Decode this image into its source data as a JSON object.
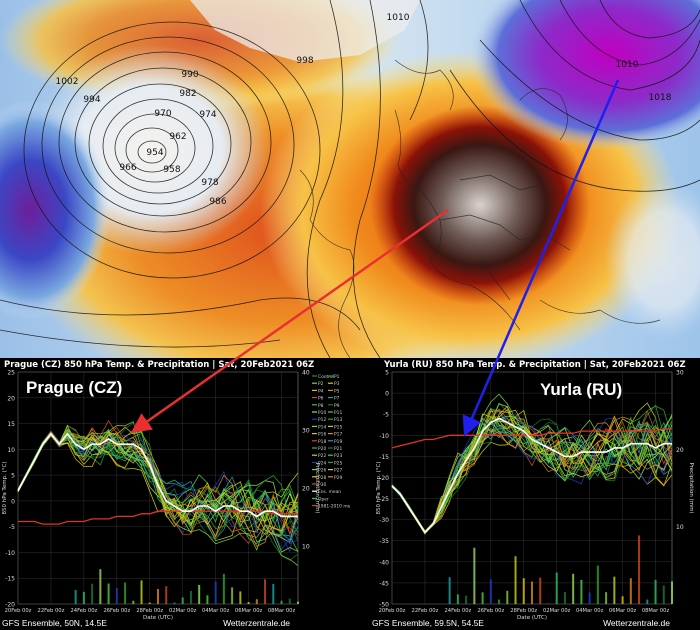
{
  "map": {
    "isobar_labels": [
      "990",
      "982",
      "974",
      "970",
      "962",
      "954",
      "958",
      "966",
      "978",
      "986",
      "994",
      "1002",
      "998",
      "1010",
      "1010",
      "1018"
    ]
  },
  "colors": {
    "control": "#2d8f2d",
    "members": [
      "#1e3cc8",
      "#2aa82a",
      "#7fd13b",
      "#c7d61a",
      "#e8c300",
      "#e08a1a",
      "#d44a1a",
      "#19a6a6",
      "#30c060",
      "#1a7a3a",
      "#9adf5a",
      "#4bd04b"
    ],
    "mean": "#ffffff",
    "climate": "#e0332a",
    "arrow_prague": "#e83030",
    "arrow_yurla": "#2020ee"
  },
  "panels": [
    {
      "key": "prague",
      "title": "Prague  (CZ)  850 hPa Temp. & Precipitation | Sat, 20Feb2021 06Z",
      "name": "Prague (CZ)",
      "footer_left": "GFS Ensemble, 50N, 14.5E",
      "footer_right": "Wetterzentrale.de",
      "legend": [
        "Control",
        "P1",
        "P2",
        "P3",
        "P4",
        "P5",
        "P6",
        "P7",
        "P8",
        "P9",
        "P10",
        "P11",
        "P12",
        "P13",
        "P14",
        "P15",
        "P16",
        "P17",
        "P18",
        "P19",
        "P20",
        "P21",
        "P22",
        "P23",
        "P24",
        "P25",
        "P26",
        "P27",
        "P28",
        "P29",
        "P30",
        "Ens. mean",
        "Oper",
        "1981-2010 mean"
      ]
    },
    {
      "key": "yurla",
      "title": "Yurla  (RU)  850 hPa Temp. & Precipitation | Sat, 20Feb2021 06Z",
      "name": "Yurla (RU)",
      "footer_left": "GFS Ensemble, 59.5N, 54.5E",
      "footer_right": "Wetterzentrale.de",
      "legend": []
    }
  ],
  "chart_data": [
    {
      "type": "line",
      "title": "Prague  (CZ)  850 hPa Temp. & Precipitation | Sat, 20Feb2021 06Z",
      "xlabel": "Date (UTC)",
      "ylabel": "850 hPa Temp. (°C)",
      "y2label": "Precipitation (mm)",
      "x_ticks": [
        "20Feb 00z",
        "22Feb 00z",
        "24Feb 00z",
        "26Feb 00z",
        "28Feb 00z",
        "02Mar 00z",
        "04Mar 00z",
        "06Mar 00z",
        "08Mar 00z"
      ],
      "ylim": [
        -20,
        25
      ],
      "y_ticks": [
        25,
        20,
        15,
        10,
        5,
        0,
        -5,
        -10,
        -15,
        -20
      ],
      "y2lim": [
        0,
        40
      ],
      "y2_ticks": [
        40,
        30,
        20,
        10
      ],
      "x_days": [
        0,
        0.5,
        1,
        1.5,
        2,
        2.5,
        3,
        3.5,
        4,
        4.5,
        5,
        5.5,
        6,
        6.5,
        7,
        7.5,
        8,
        8.5,
        9,
        9.5,
        10,
        10.5,
        11,
        11.5,
        12,
        12.5,
        13,
        13.5,
        14,
        14.5,
        15,
        15.5,
        16,
        16.5,
        17
      ],
      "series": [
        {
          "name": "Ens. mean",
          "values": [
            2,
            5,
            8,
            11,
            13,
            11,
            13,
            11,
            10,
            11,
            11,
            12,
            11,
            11,
            11,
            10,
            7,
            3,
            0,
            -1,
            -2,
            -2,
            -1,
            -1,
            -2,
            -1,
            -1,
            -2,
            -2,
            -3,
            -2,
            -2,
            -3,
            -3,
            -3
          ]
        },
        {
          "name": "1981-2010 mean",
          "values": [
            -4,
            -4,
            -4,
            -4.5,
            -4.5,
            -4.5,
            -4,
            -4,
            -4,
            -3.5,
            -3.5,
            -3.5,
            -3,
            -3,
            -3,
            -2.5,
            -2.5,
            -2,
            -2,
            -2,
            -2,
            -2,
            -2,
            -2,
            -2,
            -2,
            -2,
            -2,
            -2,
            -2,
            -2,
            -2.5,
            -2.5,
            -2.5,
            -2.5
          ]
        }
      ]
    },
    {
      "type": "line",
      "title": "Yurla  (RU)  850 hPa Temp. & Precipitation | Sat, 20Feb2021 06Z",
      "xlabel": "Date (UTC)",
      "ylabel": "850 hPa Temp. (°C)",
      "y2label": "Precipitation (mm)",
      "x_ticks": [
        "20Feb 00z",
        "22Feb 00z",
        "24Feb 00z",
        "26Feb 00z",
        "28Feb 00z",
        "02Mar 00z",
        "04Mar 00z",
        "06Mar 00z",
        "08Mar 00z"
      ],
      "ylim": [
        -50,
        5
      ],
      "y_ticks": [
        5,
        0,
        -5,
        -10,
        -15,
        -20,
        -25,
        -30,
        -35,
        -40,
        -45,
        -50
      ],
      "y2lim": [
        0,
        30
      ],
      "y2_ticks": [
        30,
        20,
        10
      ],
      "x_days": [
        0,
        0.5,
        1,
        1.5,
        2,
        2.5,
        3,
        3.5,
        4,
        4.5,
        5,
        5.5,
        6,
        6.5,
        7,
        7.5,
        8,
        8.5,
        9,
        9.5,
        10,
        10.5,
        11,
        11.5,
        12,
        12.5,
        13,
        13.5,
        14,
        14.5,
        15,
        15.5,
        16,
        16.5,
        17
      ],
      "series": [
        {
          "name": "Ens. mean",
          "values": [
            -22,
            -24,
            -27,
            -30,
            -33,
            -31,
            -27,
            -23,
            -19,
            -16,
            -13,
            -9,
            -7,
            -6,
            -7,
            -8,
            -9,
            -11,
            -12,
            -13,
            -14,
            -15,
            -15,
            -14,
            -14,
            -14,
            -14,
            -13,
            -13,
            -12,
            -12,
            -12,
            -13,
            -12,
            -12
          ]
        },
        {
          "name": "1981-2010 mean",
          "values": [
            -13,
            -12.5,
            -12,
            -11.5,
            -11,
            -11,
            -10.5,
            -10,
            -10,
            -10,
            -10,
            -10,
            -10,
            -10,
            -10,
            -10,
            -10,
            -10,
            -10,
            -9.5,
            -9.5,
            -9.5,
            -9.5,
            -9,
            -9,
            -9,
            -9,
            -9,
            -9,
            -9,
            -9,
            -9,
            -9,
            -8.5,
            -8.5
          ]
        }
      ]
    }
  ]
}
